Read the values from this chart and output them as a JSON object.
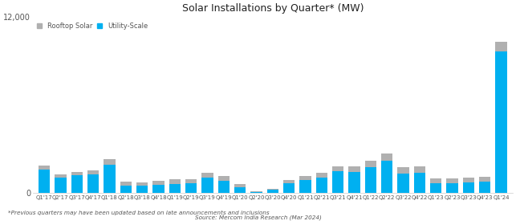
{
  "title": "Solar Installations by Quarter* (MW)",
  "footnote": "*Previous quarters may have been updated based on late announcements and inclusions",
  "source": "Source: Mercom India Research (Mar 2024)",
  "legend_rooftop": "Rooftop Solar",
  "legend_utility": "Utility-Scale",
  "color_utility": "#00b0f0",
  "color_rooftop": "#b0b0b0",
  "ylim": [
    0,
    12000
  ],
  "categories": [
    "Q1'17",
    "Q2'17",
    "Q3'17",
    "Q4'17",
    "Q1'18",
    "Q2'18",
    "Q3'18",
    "Q4'18",
    "Q1'19",
    "Q2'19",
    "Q3'19",
    "Q4'19",
    "Q1'20",
    "Q2'20",
    "Q3'20",
    "Q4'20",
    "Q1'21",
    "Q2'21",
    "Q3'21",
    "Q4'21",
    "Q1'22",
    "Q2'22",
    "Q3'22",
    "Q4'22",
    "Q1'23",
    "Q2'23",
    "Q3'23",
    "Q4'23",
    "Q1'24"
  ],
  "utility": [
    1580,
    1050,
    1200,
    1270,
    1920,
    490,
    470,
    530,
    620,
    640,
    1030,
    820,
    380,
    80,
    220,
    680,
    860,
    1030,
    1470,
    1420,
    1780,
    2180,
    1300,
    1400,
    660,
    650,
    700,
    760,
    9650
  ],
  "rooftop": [
    290,
    230,
    240,
    270,
    390,
    270,
    250,
    270,
    290,
    290,
    330,
    330,
    230,
    40,
    70,
    190,
    280,
    330,
    340,
    390,
    430,
    490,
    430,
    430,
    330,
    330,
    340,
    360,
    680
  ]
}
